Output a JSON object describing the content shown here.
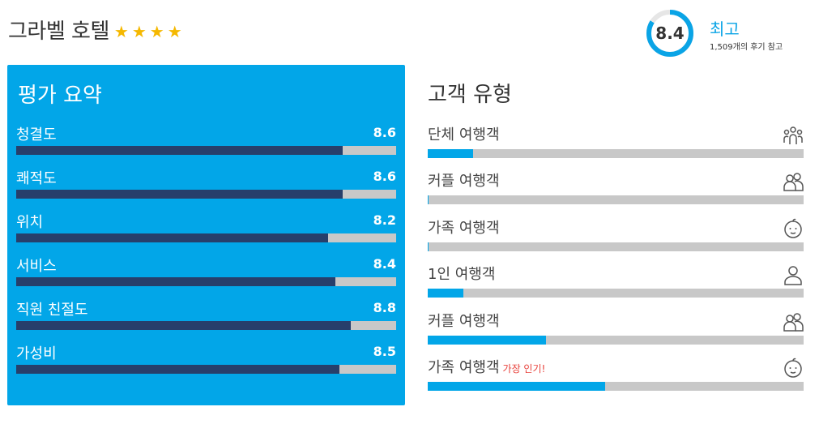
{
  "hotel": {
    "name": "그라벨 호텔",
    "stars": 4
  },
  "score": {
    "value": "8.4",
    "fraction": 0.84,
    "label": "최고",
    "reviews": "1,509개의 후기 참고",
    "ring_color": "#0aa4e6"
  },
  "summary": {
    "title": "평가 요약",
    "metrics": [
      {
        "label": "청결도",
        "value": "8.6",
        "score": 8.6
      },
      {
        "label": "쾌적도",
        "value": "8.6",
        "score": 8.6
      },
      {
        "label": "위치",
        "value": "8.2",
        "score": 8.2
      },
      {
        "label": "서비스",
        "value": "8.4",
        "score": 8.4
      },
      {
        "label": "직원 친절도",
        "value": "8.8",
        "score": 8.8
      },
      {
        "label": "가성비",
        "value": "8.5",
        "score": 8.5
      }
    ]
  },
  "guest_types": {
    "title": "고객 유형",
    "popular_label": "가장 인기!",
    "items": [
      {
        "label": "단체 여행객",
        "icon": "group-icon",
        "share": 0.12
      },
      {
        "label": "커플 여행객",
        "icon": "couple-icon",
        "share": 0.003
      },
      {
        "label": "가족 여행객",
        "icon": "family-icon",
        "share": 0.003
      },
      {
        "label": "1인 여행객",
        "icon": "solo-icon",
        "share": 0.095
      },
      {
        "label": "커플 여행객",
        "icon": "couple-icon",
        "share": 0.315
      },
      {
        "label": "가족 여행객",
        "icon": "family-icon",
        "share": 0.472,
        "popular": true
      }
    ]
  },
  "colors": {
    "accent": "#02a6e8",
    "bar_dark": "#273f6b",
    "bar_track": "#c8c8c8",
    "star": "#f5b800",
    "popular": "#e8403a"
  }
}
